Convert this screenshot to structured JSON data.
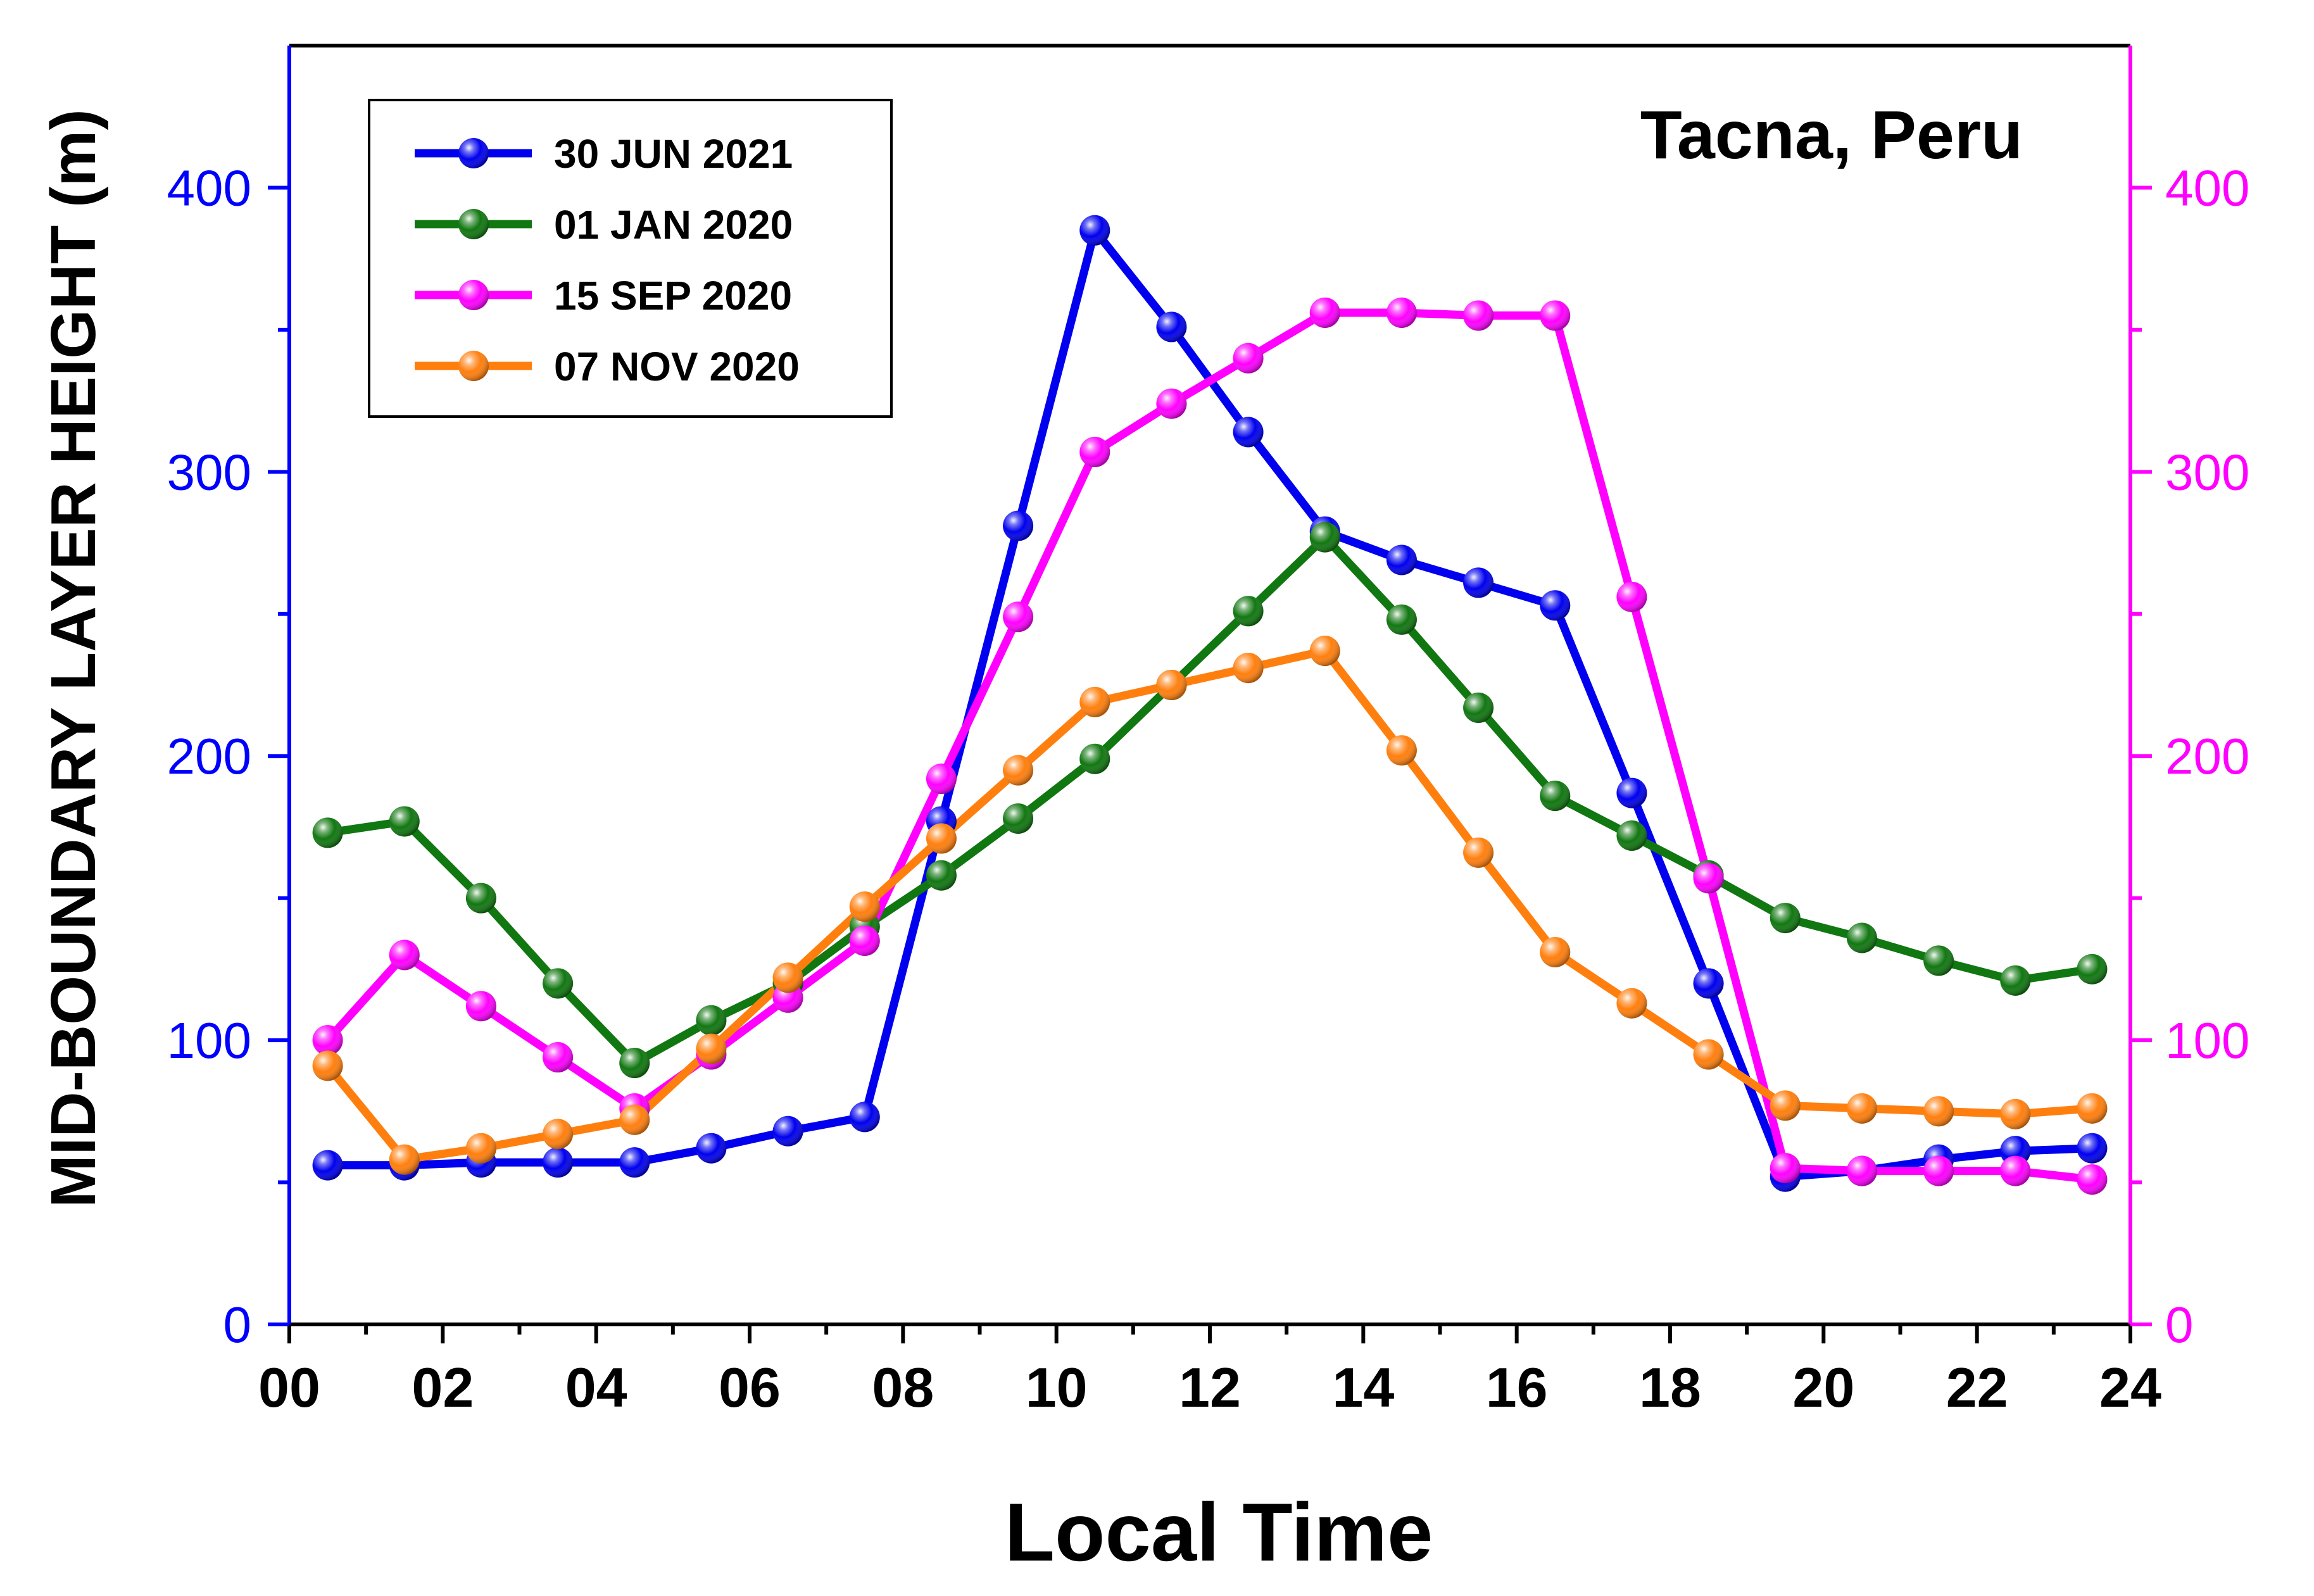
{
  "chart_data": {
    "type": "line",
    "title": "",
    "annotation": "Tacna, Peru",
    "xlabel": "Local Time",
    "ylabel": "MID-BOUNDARY LAYER HEIGHT (m)",
    "xlim": [
      0,
      24
    ],
    "ylim": [
      0,
      450
    ],
    "y2lim": [
      0,
      450
    ],
    "x_tick_labels": [
      "00",
      "02",
      "04",
      "06",
      "08",
      "10",
      "12",
      "14",
      "16",
      "18",
      "20",
      "22",
      "24"
    ],
    "y_tick_labels": [
      "0",
      "100",
      "200",
      "300",
      "400"
    ],
    "y2_tick_labels": [
      "0",
      "100",
      "200",
      "300",
      "400"
    ],
    "left_axis_color": "#0000ff",
    "right_axis_color": "#ff00ff",
    "legend_position": "top-left",
    "x": [
      0.5,
      1.5,
      2.5,
      3.5,
      4.5,
      5.5,
      6.5,
      7.5,
      8.5,
      9.5,
      10.5,
      11.5,
      12.5,
      13.5,
      14.5,
      15.5,
      16.5,
      17.5,
      18.5,
      19.5,
      20.5,
      21.5,
      22.5,
      23.5
    ],
    "series": [
      {
        "name": "30 JUN 2021",
        "color": "#0000ee",
        "axis": "left",
        "values": [
          56,
          56,
          57,
          57,
          57,
          62,
          68,
          73,
          177,
          281,
          385,
          351,
          314,
          279,
          269,
          261,
          253,
          187,
          120,
          52,
          54,
          58,
          61,
          62
        ]
      },
      {
        "name": "01 JAN 2020",
        "color": "#117711",
        "axis": "left",
        "values": [
          173,
          177,
          150,
          120,
          92,
          107,
          120,
          140,
          158,
          178,
          199,
          225,
          251,
          277,
          248,
          217,
          186,
          172,
          158,
          143,
          136,
          128,
          121,
          125
        ]
      },
      {
        "name": "15 SEP 2020",
        "color": "#ff00ff",
        "axis": "right",
        "values": [
          100,
          130,
          112,
          94,
          76,
          95,
          115,
          135,
          192,
          249,
          307,
          324,
          340,
          356,
          356,
          355,
          355,
          256,
          157,
          55,
          54,
          54,
          54,
          51
        ]
      },
      {
        "name": "07 NOV 2020",
        "color": "#ff7f0e",
        "axis": "left",
        "values": [
          91,
          58,
          62,
          67,
          72,
          97,
          122,
          147,
          171,
          195,
          219,
          225,
          231,
          237,
          202,
          166,
          131,
          113,
          95,
          77,
          76,
          75,
          74,
          76
        ]
      }
    ]
  }
}
